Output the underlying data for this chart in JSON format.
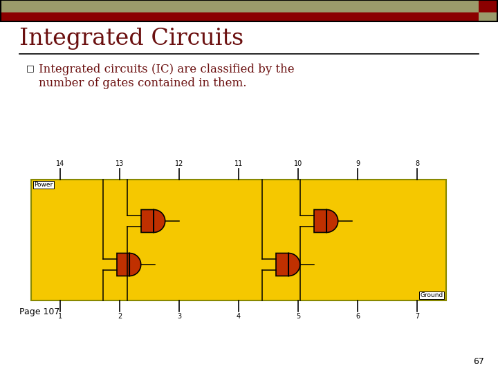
{
  "title": "Integrated Circuits",
  "bullet_text_line1": "Integrated circuits (IC) are classified by the",
  "bullet_text_line2": "number of gates contained in them.",
  "page_label": "Page 107",
  "slide_number": "67",
  "title_color": "#6B1010",
  "bullet_color": "#6B1010",
  "bg_color": "#FFFFFF",
  "divider_color": "#000000",
  "bullet_symbol": "□",
  "header_tan_color": "#9B9B6B",
  "header_red_color": "#8B0000",
  "ic_bg_color": "#F5C800",
  "gate_color": "#C03000",
  "gate_edge_color": "#000000"
}
